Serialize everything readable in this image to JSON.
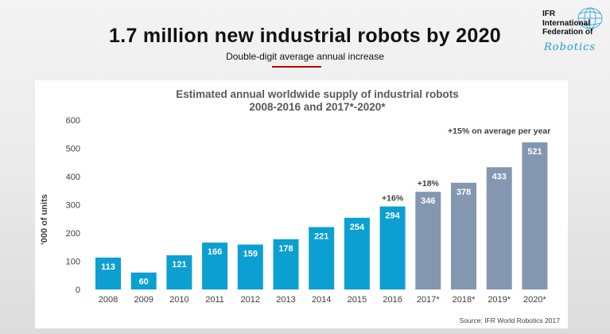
{
  "header": {
    "title": "1.7 million new industrial robots by 2020",
    "subtitle": "Double-digit  average  annual  increase"
  },
  "logo": {
    "lines": [
      "IFR",
      "International",
      "Federation of"
    ],
    "script_text": "Robotics",
    "color": "#1a9cd8"
  },
  "colors": {
    "actual_bar": "#0c9fd1",
    "forecast_bar": "#8497b0",
    "accent_underline": "#c00000"
  },
  "chart_data": {
    "type": "bar",
    "title": "Estimated annual worldwide supply of industrial robots",
    "subtitle": "2008-2016 and 2017*-2020*",
    "xlabel": "",
    "ylabel": "'000 of units",
    "ylim": [
      0,
      600
    ],
    "yticks": [
      0,
      100,
      200,
      300,
      400,
      500,
      600
    ],
    "grid": false,
    "categories": [
      "2008",
      "2009",
      "2010",
      "2011",
      "2012",
      "2013",
      "2014",
      "2015",
      "2016",
      "2017*",
      "2018*",
      "2019*",
      "2020*"
    ],
    "values": [
      113,
      60,
      121,
      166,
      159,
      178,
      221,
      254,
      294,
      346,
      378,
      433,
      521
    ],
    "forecast": [
      false,
      false,
      false,
      false,
      false,
      false,
      false,
      false,
      false,
      true,
      true,
      true,
      true
    ],
    "annotations": [
      {
        "text": "+16%",
        "category": "2016"
      },
      {
        "text": "+18%",
        "category": "2017*"
      },
      {
        "text": "+15%  on average per year",
        "category": "2019*"
      }
    ],
    "source": "Source: IFR World Robotics 2017"
  }
}
